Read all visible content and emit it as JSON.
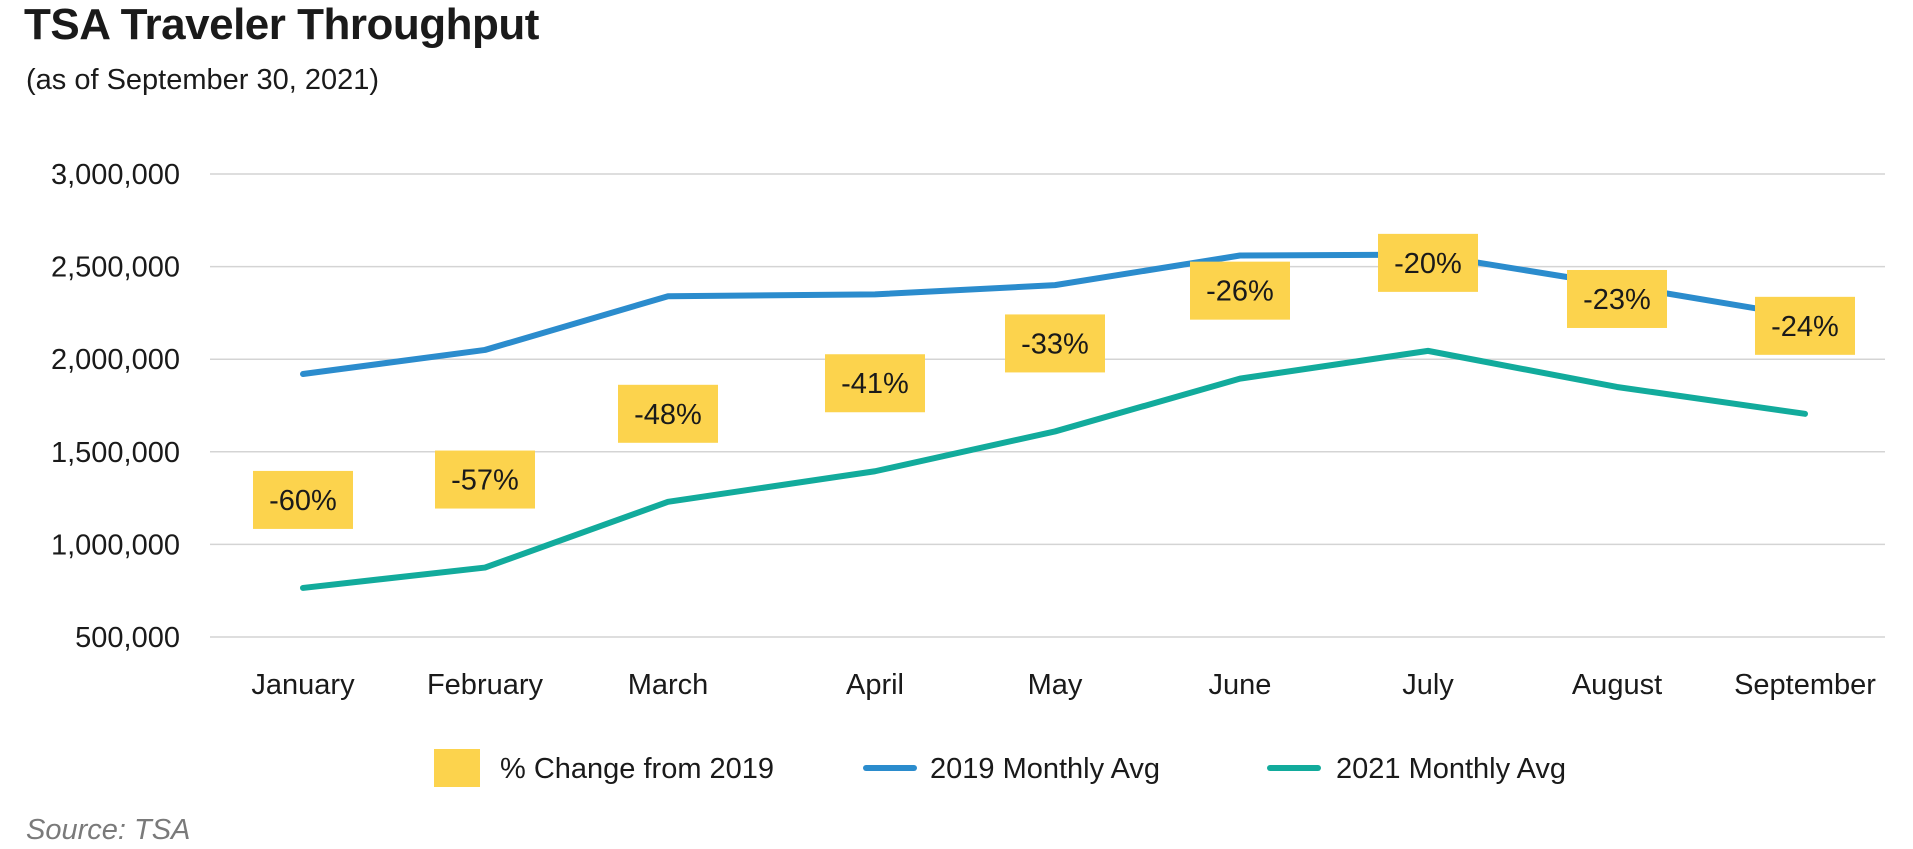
{
  "header": {
    "title": "TSA Traveler Throughput",
    "subtitle": "(as of September 30, 2021)"
  },
  "footer": {
    "source": "Source: TSA"
  },
  "chart_data": {
    "type": "line",
    "title": "TSA Traveler Throughput",
    "subtitle": "(as of September 30, 2021)",
    "categories": [
      "January",
      "February",
      "March",
      "April",
      "May",
      "June",
      "July",
      "August",
      "September"
    ],
    "ylim": [
      500000,
      3000000
    ],
    "yticks": [
      500000,
      1000000,
      1500000,
      2000000,
      2500000,
      3000000
    ],
    "ytick_labels": [
      "500,000",
      "1,000,000",
      "1,500,000",
      "2,000,000",
      "2,500,000",
      "3,000,000"
    ],
    "grid": true,
    "legend_position": "bottom",
    "series": [
      {
        "name": "2019 Monthly Avg",
        "color": "#2b8ccd",
        "values": [
          1920000,
          2050000,
          2340000,
          2350000,
          2400000,
          2560000,
          2565000,
          2400000,
          2230000
        ]
      },
      {
        "name": "2021 Monthly Avg",
        "color": "#12ab9c",
        "values": [
          765000,
          875000,
          1230000,
          1395000,
          1610000,
          1895000,
          2045000,
          1850000,
          1705000
        ]
      }
    ],
    "pct_change": {
      "name": "% Change from 2019",
      "color": "#fcd34d",
      "labels": [
        "-60%",
        "-57%",
        "-48%",
        "-41%",
        "-33%",
        "-26%",
        "-20%",
        "-23%",
        "-24%"
      ]
    }
  }
}
